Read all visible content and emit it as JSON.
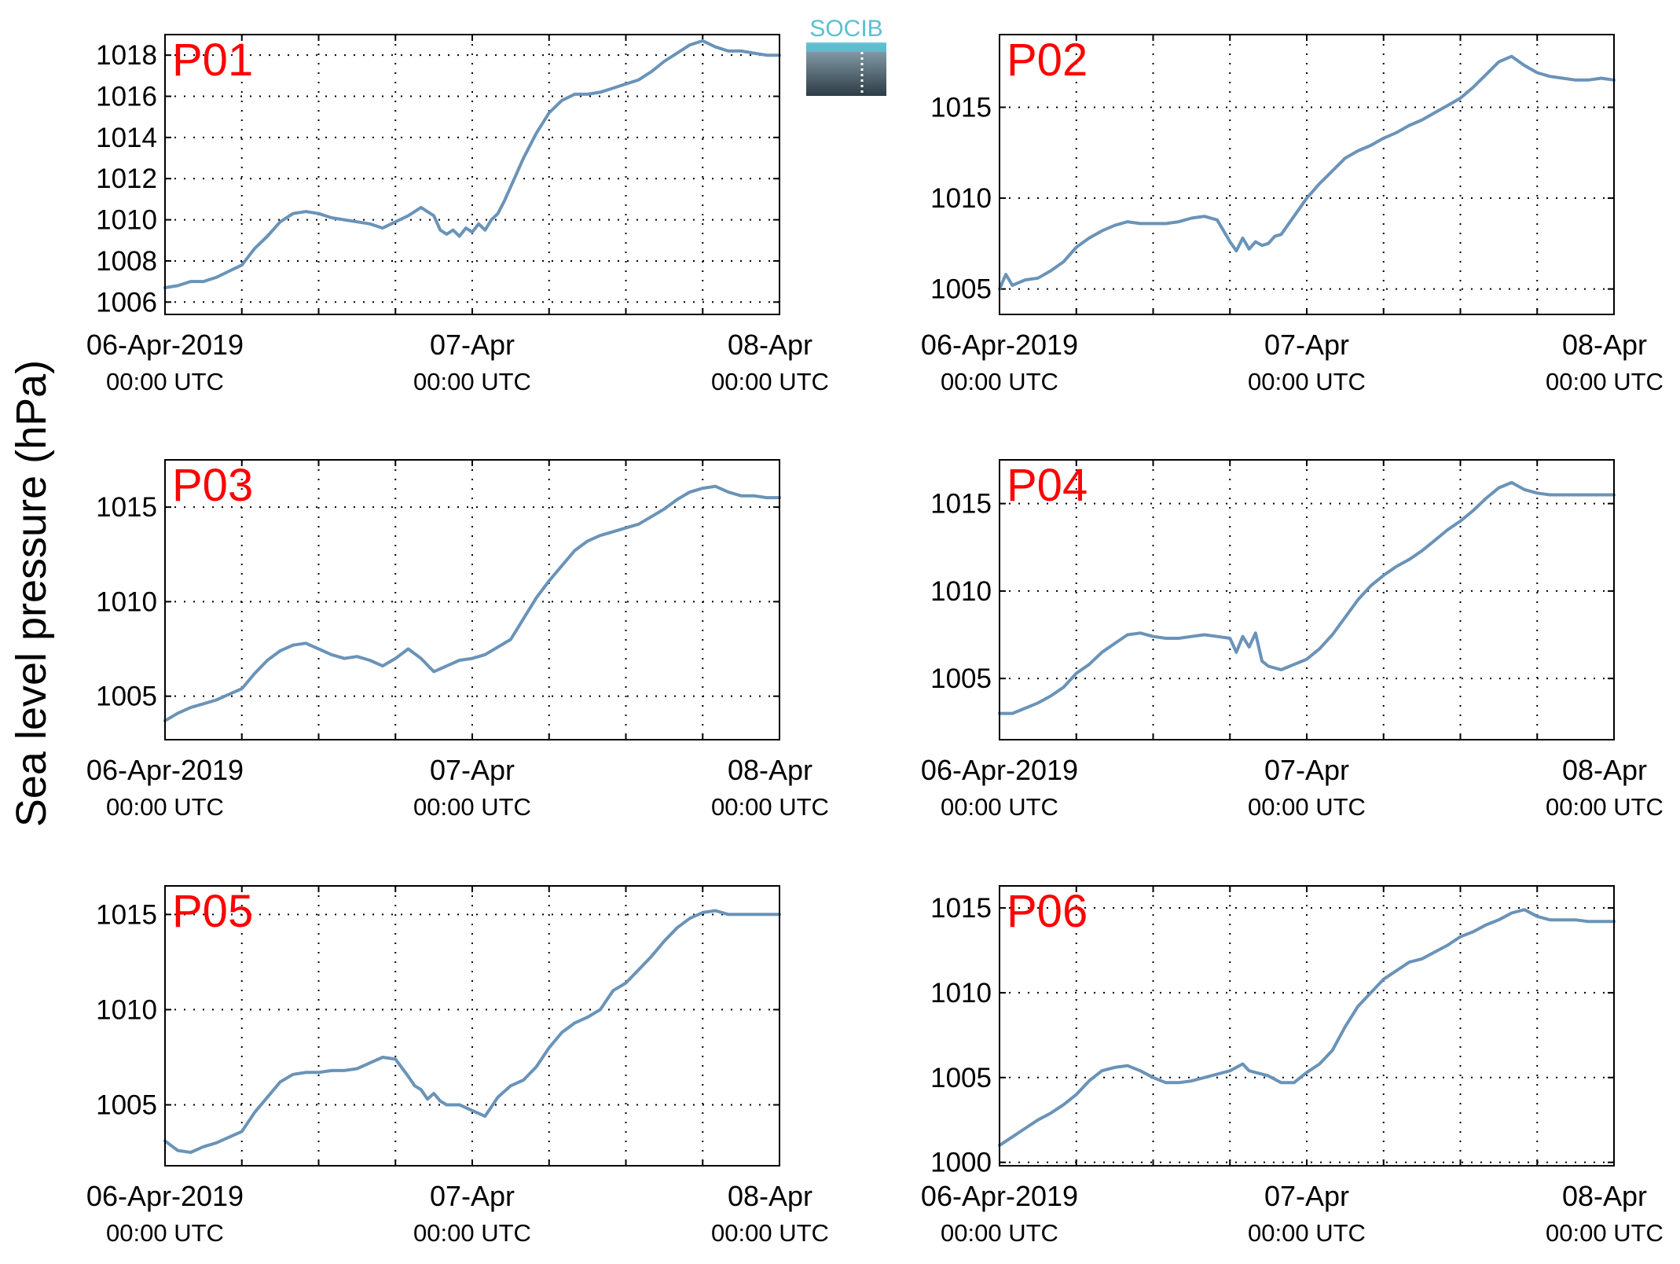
{
  "ylabel": "Sea level pressure (hPa)",
  "logo": {
    "text": "SOCIB",
    "text_color": "#5bbfd2",
    "gradient_top": "#8fa9b6",
    "gradient_bottom": "#2e3c45"
  },
  "colors": {
    "line": "#6a93b8",
    "panel_label": "#ff0000",
    "axis": "#000000",
    "grid": "#000000"
  },
  "x_ticks": [
    {
      "date": "06-Apr-2019",
      "time": "00:00 UTC"
    },
    {
      "date": "07-Apr",
      "time": "00:00 UTC"
    },
    {
      "date": "08-Apr",
      "time": "00:00 UTC"
    }
  ],
  "chart_data": [
    {
      "type": "line",
      "label": "P01",
      "x_unit": "hours since 06-Apr-2019 00:00 UTC",
      "xlim": [
        0,
        48
      ],
      "ylim": [
        1005.4,
        1019
      ],
      "yticks": [
        1006,
        1008,
        1010,
        1012,
        1014,
        1016,
        1018
      ],
      "grid": true,
      "x": [
        0,
        1,
        2,
        3,
        4,
        5,
        6,
        7,
        8,
        9,
        10,
        11,
        12,
        13,
        14,
        15,
        16,
        17,
        18,
        19,
        20,
        21,
        21.5,
        22,
        22.5,
        23,
        23.5,
        24,
        24.5,
        25,
        25.5,
        26,
        26.5,
        27,
        28,
        29,
        30,
        31,
        32,
        33,
        34,
        35,
        36,
        37,
        38,
        39,
        40,
        41,
        42,
        43,
        44,
        45,
        46,
        47,
        48
      ],
      "y": [
        1006.7,
        1006.8,
        1007.0,
        1007.0,
        1007.2,
        1007.5,
        1007.8,
        1008.6,
        1009.2,
        1009.9,
        1010.3,
        1010.4,
        1010.3,
        1010.1,
        1010.0,
        1009.9,
        1009.8,
        1009.6,
        1009.9,
        1010.2,
        1010.6,
        1010.2,
        1009.5,
        1009.3,
        1009.5,
        1009.2,
        1009.6,
        1009.4,
        1009.8,
        1009.5,
        1010.0,
        1010.3,
        1010.9,
        1011.6,
        1013.0,
        1014.2,
        1015.2,
        1015.8,
        1016.1,
        1016.1,
        1016.2,
        1016.4,
        1016.6,
        1016.8,
        1017.2,
        1017.7,
        1018.1,
        1018.5,
        1018.7,
        1018.4,
        1018.2,
        1018.2,
        1018.1,
        1018.0,
        1018.0
      ]
    },
    {
      "type": "line",
      "label": "P02",
      "x_unit": "hours since 06-Apr-2019 00:00 UTC",
      "xlim": [
        0,
        48
      ],
      "ylim": [
        1003.6,
        1019
      ],
      "yticks": [
        1005,
        1010,
        1015
      ],
      "grid": true,
      "x": [
        0,
        0.5,
        1,
        2,
        3,
        4,
        5,
        6,
        7,
        8,
        9,
        10,
        11,
        12,
        13,
        14,
        15,
        16,
        17,
        18,
        18.5,
        19,
        19.5,
        20,
        20.5,
        21,
        21.5,
        22,
        23,
        24,
        25,
        26,
        27,
        28,
        29,
        30,
        31,
        32,
        33,
        34,
        35,
        36,
        37,
        38,
        39,
        40,
        41,
        42,
        43,
        44,
        45,
        46,
        47,
        48
      ],
      "y": [
        1005.0,
        1005.8,
        1005.2,
        1005.5,
        1005.6,
        1006.0,
        1006.5,
        1007.3,
        1007.8,
        1008.2,
        1008.5,
        1008.7,
        1008.6,
        1008.6,
        1008.6,
        1008.7,
        1008.9,
        1009.0,
        1008.8,
        1007.6,
        1007.1,
        1007.8,
        1007.2,
        1007.6,
        1007.4,
        1007.5,
        1007.9,
        1008.0,
        1009.0,
        1010.0,
        1010.8,
        1011.5,
        1012.2,
        1012.6,
        1012.9,
        1013.3,
        1013.6,
        1014.0,
        1014.3,
        1014.7,
        1015.1,
        1015.5,
        1016.1,
        1016.8,
        1017.5,
        1017.8,
        1017.3,
        1016.9,
        1016.7,
        1016.6,
        1016.5,
        1016.5,
        1016.6,
        1016.5
      ]
    },
    {
      "type": "line",
      "label": "P03",
      "x_unit": "hours since 06-Apr-2019 00:00 UTC",
      "xlim": [
        0,
        48
      ],
      "ylim": [
        1002.7,
        1017.5
      ],
      "yticks": [
        1005,
        1010,
        1015
      ],
      "grid": true,
      "x": [
        0,
        1,
        2,
        3,
        4,
        5,
        6,
        7,
        8,
        9,
        10,
        11,
        12,
        13,
        14,
        15,
        16,
        17,
        18,
        19,
        20,
        21,
        22,
        23,
        24,
        25,
        26,
        27,
        28,
        29,
        30,
        31,
        32,
        33,
        34,
        35,
        36,
        37,
        38,
        39,
        40,
        41,
        42,
        43,
        44,
        45,
        46,
        47,
        48
      ],
      "y": [
        1003.7,
        1004.1,
        1004.4,
        1004.6,
        1004.8,
        1005.1,
        1005.4,
        1006.2,
        1006.9,
        1007.4,
        1007.7,
        1007.8,
        1007.5,
        1007.2,
        1007.0,
        1007.1,
        1006.9,
        1006.6,
        1007.0,
        1007.5,
        1007.0,
        1006.3,
        1006.6,
        1006.9,
        1007.0,
        1007.2,
        1007.6,
        1008.0,
        1009.1,
        1010.2,
        1011.1,
        1011.9,
        1012.7,
        1013.2,
        1013.5,
        1013.7,
        1013.9,
        1014.1,
        1014.5,
        1014.9,
        1015.4,
        1015.8,
        1016.0,
        1016.1,
        1015.8,
        1015.6,
        1015.6,
        1015.5,
        1015.5
      ]
    },
    {
      "type": "line",
      "label": "P04",
      "x_unit": "hours since 06-Apr-2019 00:00 UTC",
      "xlim": [
        0,
        48
      ],
      "ylim": [
        1001.5,
        1017.5
      ],
      "yticks": [
        1005,
        1010,
        1015
      ],
      "grid": true,
      "x": [
        0,
        1,
        2,
        3,
        4,
        5,
        6,
        7,
        8,
        9,
        10,
        11,
        12,
        13,
        14,
        15,
        16,
        17,
        18,
        18.5,
        19,
        19.5,
        20,
        20.5,
        21,
        22,
        23,
        24,
        25,
        26,
        27,
        28,
        29,
        30,
        31,
        32,
        33,
        34,
        35,
        36,
        37,
        38,
        39,
        40,
        41,
        42,
        43,
        44,
        45,
        46,
        47,
        48
      ],
      "y": [
        1003.0,
        1003.0,
        1003.3,
        1003.6,
        1004.0,
        1004.5,
        1005.3,
        1005.8,
        1006.5,
        1007.0,
        1007.5,
        1007.6,
        1007.4,
        1007.3,
        1007.3,
        1007.4,
        1007.5,
        1007.4,
        1007.3,
        1006.5,
        1007.4,
        1006.8,
        1007.6,
        1006.0,
        1005.7,
        1005.5,
        1005.8,
        1006.1,
        1006.7,
        1007.5,
        1008.5,
        1009.5,
        1010.3,
        1010.9,
        1011.4,
        1011.8,
        1012.3,
        1012.9,
        1013.5,
        1014.0,
        1014.6,
        1015.3,
        1015.9,
        1016.2,
        1015.8,
        1015.6,
        1015.5,
        1015.5,
        1015.5,
        1015.5,
        1015.5,
        1015.5
      ]
    },
    {
      "type": "line",
      "label": "P05",
      "x_unit": "hours since 06-Apr-2019 00:00 UTC",
      "xlim": [
        0,
        48
      ],
      "ylim": [
        1001.8,
        1016.5
      ],
      "yticks": [
        1005,
        1010,
        1015
      ],
      "grid": true,
      "x": [
        0,
        1,
        2,
        3,
        4,
        5,
        6,
        7,
        8,
        9,
        10,
        11,
        12,
        13,
        14,
        15,
        16,
        17,
        18,
        19,
        19.5,
        20,
        20.5,
        21,
        21.5,
        22,
        23,
        24,
        25,
        26,
        27,
        28,
        29,
        30,
        31,
        32,
        33,
        34,
        35,
        35.5,
        36,
        37,
        38,
        39,
        40,
        41,
        42,
        43,
        44,
        45,
        46,
        47,
        48
      ],
      "y": [
        1003.1,
        1002.6,
        1002.5,
        1002.8,
        1003.0,
        1003.3,
        1003.6,
        1004.6,
        1005.4,
        1006.2,
        1006.6,
        1006.7,
        1006.7,
        1006.8,
        1006.8,
        1006.9,
        1007.2,
        1007.5,
        1007.4,
        1006.5,
        1006.0,
        1005.8,
        1005.3,
        1005.6,
        1005.2,
        1005.0,
        1005.0,
        1004.7,
        1004.4,
        1005.4,
        1006.0,
        1006.3,
        1007.0,
        1008.0,
        1008.8,
        1009.3,
        1009.6,
        1010.0,
        1011.0,
        1011.2,
        1011.4,
        1012.1,
        1012.8,
        1013.6,
        1014.3,
        1014.8,
        1015.1,
        1015.2,
        1015.0,
        1015.0,
        1015.0,
        1015.0,
        1015.0
      ]
    },
    {
      "type": "line",
      "label": "P06",
      "x_unit": "hours since 06-Apr-2019 00:00 UTC",
      "xlim": [
        0,
        48
      ],
      "ylim": [
        999.8,
        1016.3
      ],
      "yticks": [
        1000,
        1005,
        1010,
        1015
      ],
      "grid": true,
      "x": [
        0,
        1,
        2,
        3,
        4,
        5,
        6,
        7,
        8,
        9,
        10,
        11,
        12,
        13,
        14,
        15,
        16,
        17,
        18,
        19,
        19.5,
        20,
        21,
        22,
        23,
        24,
        25,
        26,
        27,
        28,
        29,
        30,
        31,
        32,
        33,
        34,
        35,
        36,
        37,
        38,
        39,
        40,
        41,
        42,
        43,
        44,
        45,
        46,
        47,
        48
      ],
      "y": [
        1001.0,
        1001.5,
        1002.0,
        1002.5,
        1002.9,
        1003.4,
        1004.0,
        1004.8,
        1005.4,
        1005.6,
        1005.7,
        1005.4,
        1005.0,
        1004.7,
        1004.7,
        1004.8,
        1005.0,
        1005.2,
        1005.4,
        1005.8,
        1005.4,
        1005.3,
        1005.1,
        1004.7,
        1004.7,
        1005.3,
        1005.8,
        1006.6,
        1008.0,
        1009.2,
        1010.0,
        1010.8,
        1011.3,
        1011.8,
        1012.0,
        1012.4,
        1012.8,
        1013.3,
        1013.6,
        1014.0,
        1014.3,
        1014.7,
        1014.9,
        1014.5,
        1014.3,
        1014.3,
        1014.3,
        1014.2,
        1014.2,
        1014.2
      ]
    }
  ]
}
